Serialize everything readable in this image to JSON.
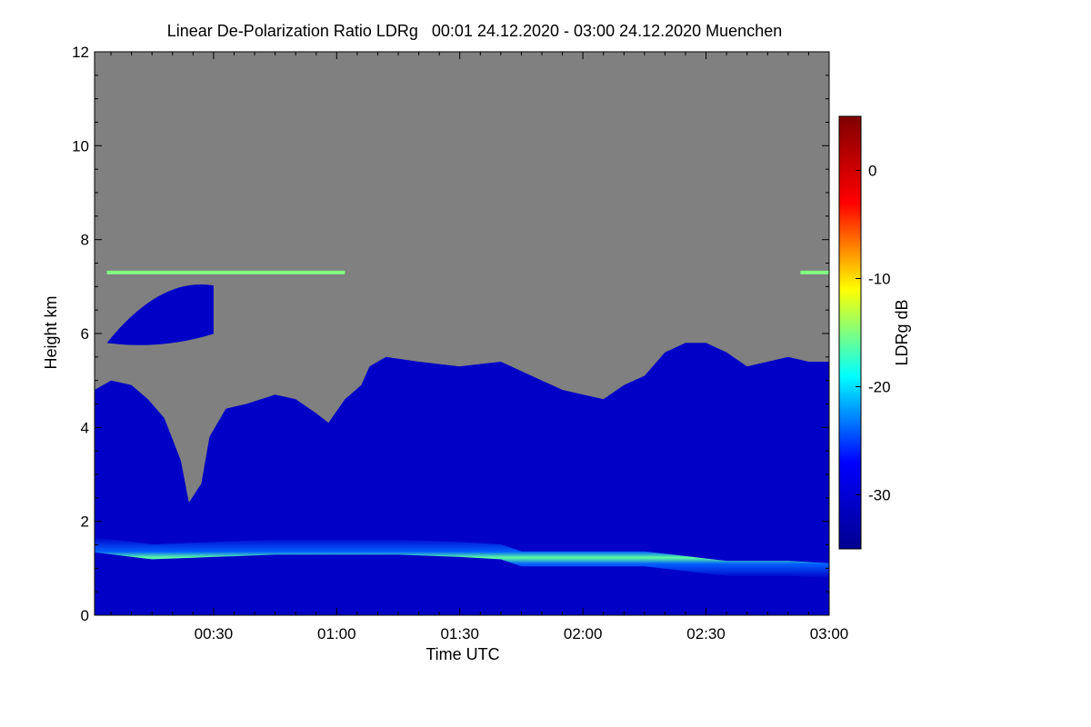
{
  "chart_data": {
    "type": "heatmap",
    "title": "Linear De-Polarization Ratio LDRg   00:01 24.12.2020 - 03:00 24.12.2020 Muenchen",
    "xlabel": "Time UTC",
    "ylabel": "Height km",
    "colorbar_label": "LDRg dB",
    "x_range_minutes": [
      1,
      180
    ],
    "y_range_km": [
      0,
      12
    ],
    "x_ticks": [
      {
        "minutes": 30,
        "label": "00:30"
      },
      {
        "minutes": 60,
        "label": "01:00"
      },
      {
        "minutes": 90,
        "label": "01:30"
      },
      {
        "minutes": 120,
        "label": "02:00"
      },
      {
        "minutes": 150,
        "label": "02:30"
      },
      {
        "minutes": 180,
        "label": "03:00"
      }
    ],
    "y_ticks": [
      {
        "km": 0,
        "label": "0"
      },
      {
        "km": 2,
        "label": "2"
      },
      {
        "km": 4,
        "label": "4"
      },
      {
        "km": 6,
        "label": "6"
      },
      {
        "km": 8,
        "label": "8"
      },
      {
        "km": 10,
        "label": "10"
      },
      {
        "km": 12,
        "label": "12"
      }
    ],
    "colorbar_range_db": [
      -35,
      5
    ],
    "colorbar_ticks": [
      {
        "db": 0,
        "label": "0"
      },
      {
        "db": -10,
        "label": "-10"
      },
      {
        "db": -20,
        "label": "-20"
      },
      {
        "db": -30,
        "label": "-30"
      }
    ],
    "colormap": [
      "#00008f",
      "#0000ff",
      "#00ffff",
      "#ffff00",
      "#ff0000",
      "#800000"
    ],
    "no_data_color": "#808080",
    "signal_top_km": [
      [
        1,
        4.8
      ],
      [
        5,
        5.0
      ],
      [
        10,
        4.9
      ],
      [
        14,
        4.6
      ],
      [
        18,
        4.2
      ],
      [
        22,
        3.3
      ],
      [
        24,
        2.4
      ],
      [
        27,
        2.8
      ],
      [
        29,
        3.8
      ],
      [
        33,
        4.4
      ],
      [
        38,
        4.5
      ],
      [
        45,
        4.7
      ],
      [
        50,
        4.6
      ],
      [
        55,
        4.3
      ],
      [
        58,
        4.1
      ],
      [
        62,
        4.6
      ],
      [
        66,
        4.9
      ],
      [
        68,
        5.3
      ],
      [
        72,
        5.5
      ],
      [
        80,
        5.4
      ],
      [
        90,
        5.3
      ],
      [
        100,
        5.4
      ],
      [
        110,
        5.0
      ],
      [
        115,
        4.8
      ],
      [
        120,
        4.7
      ],
      [
        125,
        4.6
      ],
      [
        130,
        4.9
      ],
      [
        135,
        5.1
      ],
      [
        140,
        5.6
      ],
      [
        145,
        5.8
      ],
      [
        150,
        5.8
      ],
      [
        155,
        5.6
      ],
      [
        160,
        5.3
      ],
      [
        165,
        5.4
      ],
      [
        170,
        5.5
      ],
      [
        175,
        5.4
      ],
      [
        180,
        5.4
      ]
    ],
    "upper_cloud": {
      "x_range_minutes": [
        4,
        30
      ],
      "top_km": 7.1,
      "base_km": 5.8
    },
    "cloud_layer": {
      "height_km": 7.3,
      "x_ranges_minutes": [
        [
          4,
          62
        ],
        [
          173,
          180
        ]
      ]
    },
    "boundary_layer_km": [
      [
        1,
        1.5
      ],
      [
        15,
        1.35
      ],
      [
        30,
        1.4
      ],
      [
        45,
        1.45
      ],
      [
        60,
        1.45
      ],
      [
        75,
        1.45
      ],
      [
        90,
        1.4
      ],
      [
        100,
        1.35
      ],
      [
        105,
        1.2
      ],
      [
        120,
        1.2
      ],
      [
        135,
        1.2
      ],
      [
        145,
        1.1
      ],
      [
        155,
        1.0
      ],
      [
        170,
        1.0
      ],
      [
        180,
        0.95
      ]
    ],
    "boundary_layer_ldr_db": -22,
    "background_ldr_db": -31
  }
}
